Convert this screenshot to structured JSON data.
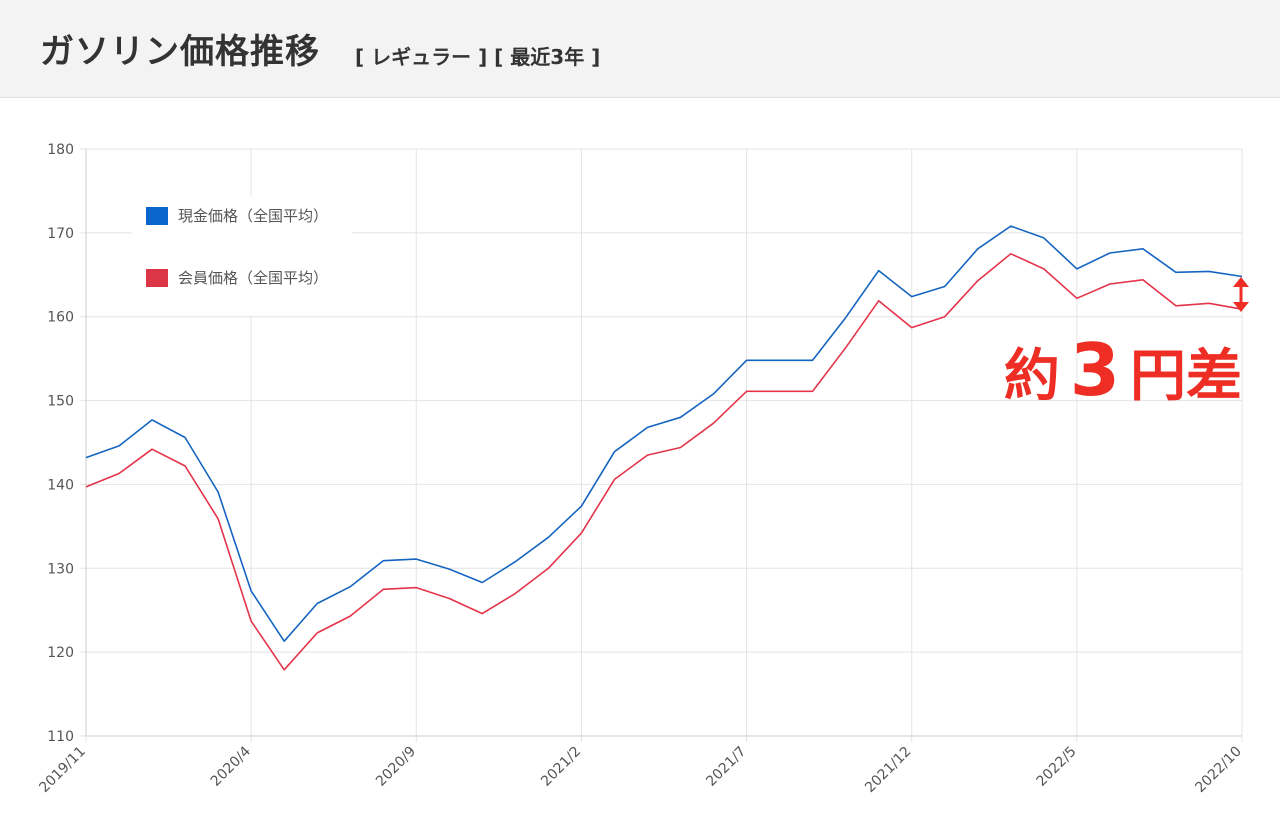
{
  "header": {
    "title": "ガソリン価格推移",
    "subtitle": "[ レギュラー ] [ 最近3年 ]"
  },
  "annotation": {
    "pre": "約",
    "number": "3",
    "post": "円差",
    "color": "#ee2e24"
  },
  "chart_data": {
    "type": "line",
    "title": "",
    "xlabel": "",
    "ylabel": "",
    "ylim": [
      110,
      180
    ],
    "yticks": [
      110,
      120,
      130,
      140,
      150,
      160,
      170,
      180
    ],
    "grid": true,
    "legend_position": "top-left",
    "x": [
      "2019/11",
      "2019/12",
      "2020/1",
      "2020/2",
      "2020/3",
      "2020/4",
      "2020/5",
      "2020/6",
      "2020/7",
      "2020/8",
      "2020/9",
      "2020/10",
      "2020/11",
      "2020/12",
      "2021/1",
      "2021/2",
      "2021/3",
      "2021/4",
      "2021/5",
      "2021/6",
      "2021/7",
      "2021/8",
      "2021/9",
      "2021/10",
      "2021/11",
      "2021/12",
      "2022/1",
      "2022/2",
      "2022/3",
      "2022/4",
      "2022/5",
      "2022/6",
      "2022/7",
      "2022/8",
      "2022/9",
      "2022/10"
    ],
    "xtick_labels": [
      "2019/11",
      "2020/4",
      "2020/9",
      "2021/2",
      "2021/7",
      "2021/12",
      "2022/5",
      "2022/10"
    ],
    "series": [
      {
        "name": "現金価格（全国平均）",
        "color": "#1565c0",
        "legend_color": "#0a66cc",
        "values": [
          143.2,
          144.6,
          147.7,
          145.6,
          139.1,
          127.3,
          121.3,
          125.8,
          127.8,
          130.9,
          131.1,
          129.9,
          128.3,
          130.8,
          133.7,
          137.4,
          143.9,
          146.8,
          148.0,
          150.8,
          154.8,
          154.8,
          154.8,
          159.9,
          165.5,
          162.4,
          163.6,
          168.1,
          170.8,
          169.4,
          165.7,
          167.6,
          168.1,
          165.3,
          165.4,
          164.8
        ]
      },
      {
        "name": "会員価格（全国平均）",
        "color": "#e3344a",
        "legend_color": "#dc3545",
        "values": [
          139.7,
          141.3,
          144.2,
          142.2,
          135.9,
          123.7,
          117.9,
          122.3,
          124.3,
          127.5,
          127.7,
          126.4,
          124.6,
          127.0,
          130.0,
          134.2,
          140.6,
          143.5,
          144.4,
          147.3,
          151.1,
          151.1,
          151.1,
          156.3,
          161.9,
          158.7,
          160.0,
          164.3,
          167.5,
          165.7,
          162.2,
          163.9,
          164.4,
          161.3,
          161.6,
          160.9
        ]
      }
    ]
  }
}
